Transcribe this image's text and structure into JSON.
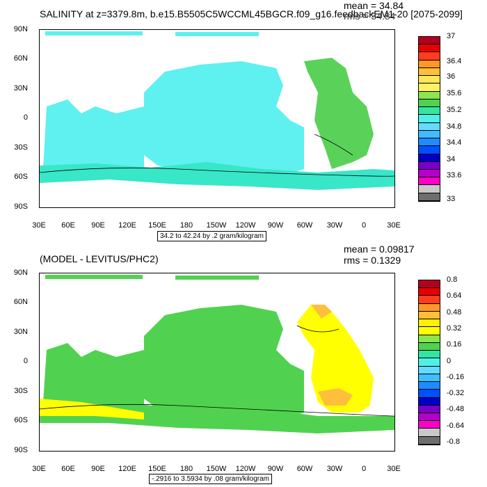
{
  "panel1": {
    "title": "SALINITY at z=3379.8m, b.e15.B5505C5WCCML45BGCR.f09_g16.feedbackEM1-20 [2075-2099]",
    "mean": "mean = 34.84",
    "rms": "rms = 34.84",
    "contour_info": "34.2 to 42.24 by .2 gram/kilogram",
    "y_ticks": [
      "90N",
      "60N",
      "30N",
      "0",
      "30S",
      "60S",
      "90S"
    ],
    "x_ticks": [
      "30E",
      "60E",
      "90E",
      "120E",
      "150E",
      "180",
      "150W",
      "120W",
      "90W",
      "60W",
      "30W",
      "0",
      "30E"
    ],
    "colorbar_labels": [
      "37",
      "36.4",
      "36",
      "35.6",
      "35.2",
      "34.8",
      "34.4",
      "34",
      "33.6",
      "33"
    ],
    "colorbar_colors": [
      "#b4001e",
      "#e60000",
      "#ff3c1e",
      "#ff9628",
      "#ffbe3c",
      "#ffe65a",
      "#fff064",
      "#8ce650",
      "#50d250",
      "#32e6a0",
      "#50f0e6",
      "#64dcff",
      "#3cbeff",
      "#1e8cff",
      "#0050ff",
      "#0000c8",
      "#7800c8",
      "#b400c8",
      "#ff00c8",
      "#c8c8c8",
      "#6e6e6e"
    ],
    "dominant_color": "#5ff0f0",
    "atlantic_color": "#5ad25a"
  },
  "panel2": {
    "title": "(MODEL - LEVITUS/PHC2)",
    "mean": "mean = 0.09817",
    "rms": "rms = 0.1329",
    "contour_info": "-.2916 to 3.5934 by .08 gram/kilogram",
    "y_ticks": [
      "90N",
      "60N",
      "30N",
      "0",
      "30S",
      "60S",
      "90S"
    ],
    "x_ticks": [
      "30E",
      "60E",
      "90E",
      "120E",
      "150E",
      "180",
      "150W",
      "120W",
      "90W",
      "60W",
      "30W",
      "0",
      "30E"
    ],
    "colorbar_labels": [
      "0.8",
      "0.64",
      "0.48",
      "0.32",
      "0.16",
      "0",
      "-0.16",
      "-0.32",
      "-0.48",
      "-0.64",
      "-0.8"
    ],
    "colorbar_colors": [
      "#b4001e",
      "#e60000",
      "#ff3c1e",
      "#ff9628",
      "#ffbe3c",
      "#fff000",
      "#ffff00",
      "#8ce650",
      "#50d250",
      "#32e6a0",
      "#50f0e6",
      "#64dcff",
      "#3cbeff",
      "#1e8cff",
      "#0050ff",
      "#0000c8",
      "#7800c8",
      "#b400c8",
      "#ff00c8",
      "#c8c8c8",
      "#6e6e6e"
    ],
    "dominant_color": "#5ad25a",
    "atlantic_color": "#ffff00",
    "south_color": "#ffff00"
  }
}
